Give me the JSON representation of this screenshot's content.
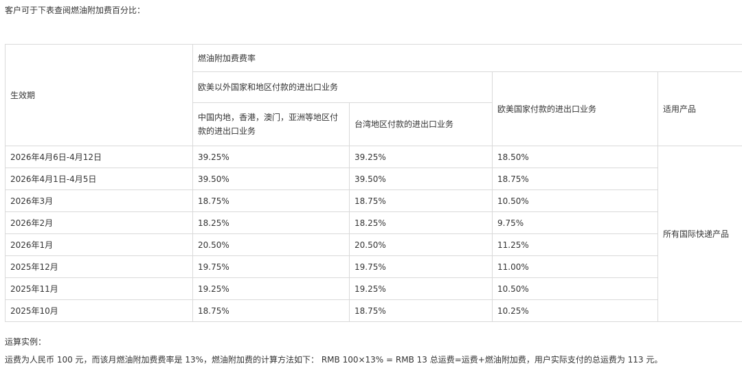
{
  "intro": "客户可于下表查阅燃油附加费百分比：",
  "table": {
    "header": {
      "effective_period": "生效期",
      "fuel_rate": "燃油附加费费率",
      "non_euro_us": "欧美以外国家和地区付款的进出口业务",
      "china_asia": "中国内地，香港，澳门，亚洲等地区付款的进出口业务",
      "taiwan": "台湾地区付款的进出口业务",
      "euro_us": "欧美国家付款的进出口业务",
      "products": "适用产品"
    },
    "rows": [
      {
        "period": "2026年4月6日-4月12日",
        "china_asia": "39.25%",
        "taiwan": "39.25%",
        "euro_us": "18.50%"
      },
      {
        "period": "2026年4月1日-4月5日",
        "china_asia": "39.50%",
        "taiwan": "39.50%",
        "euro_us": "18.75%"
      },
      {
        "period": "2026年3月",
        "china_asia": "18.75%",
        "taiwan": "18.75%",
        "euro_us": "10.50%"
      },
      {
        "period": "2026年2月",
        "china_asia": "18.25%",
        "taiwan": "18.25%",
        "euro_us": "9.75%"
      },
      {
        "period": "2026年1月",
        "china_asia": "20.50%",
        "taiwan": "20.50%",
        "euro_us": "11.25%"
      },
      {
        "period": "2025年12月",
        "china_asia": "19.75%",
        "taiwan": "19.75%",
        "euro_us": "11.00%"
      },
      {
        "period": "2025年11月",
        "china_asia": "19.25%",
        "taiwan": "19.25%",
        "euro_us": "10.50%"
      },
      {
        "period": "2025年10月",
        "china_asia": "18.75%",
        "taiwan": "18.75%",
        "euro_us": "10.25%"
      }
    ],
    "products_value": "所有国际快递产品"
  },
  "example": {
    "title": "运算实例：",
    "body": "运费为人民币 100 元，而该月燃油附加费费率是 13%，燃油附加费的计算方法如下： RMB 100×13% = RMB 13   总运费=运费+燃油附加费，用户实际支付的总运费为 113 元。"
  }
}
